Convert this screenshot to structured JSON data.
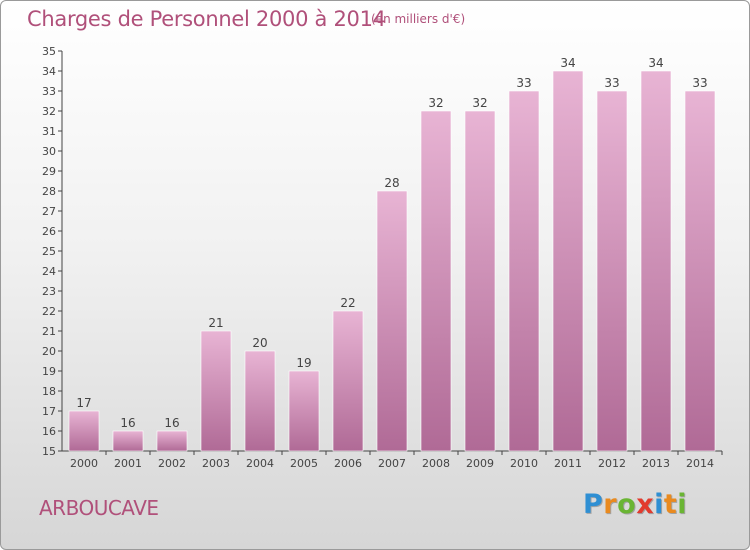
{
  "title": "Charges de Personnel 2000 à 2014",
  "subtitle": "(en milliers d'€)",
  "commune": "ARBOUCAVE",
  "logo": {
    "letters": [
      "P",
      "r",
      "o",
      "x",
      "i",
      "t",
      "i"
    ],
    "colors": [
      "#2f8fd3",
      "#e98a1f",
      "#6ab533",
      "#e23b2e",
      "#2f8fd3",
      "#e98a1f",
      "#6ab533"
    ]
  },
  "colors": {
    "bar_top": "#e8b4d4",
    "bar_bottom": "#b06a96",
    "text": "#b0507a",
    "axis": "#444444"
  },
  "chart_data": {
    "type": "bar",
    "categories": [
      "2000",
      "2001",
      "2002",
      "2003",
      "2004",
      "2005",
      "2006",
      "2007",
      "2008",
      "2009",
      "2010",
      "2011",
      "2012",
      "2013",
      "2014"
    ],
    "values": [
      17,
      16,
      16,
      21,
      20,
      19,
      22,
      28,
      32,
      32,
      33,
      34,
      33,
      34,
      33
    ],
    "ylim": [
      15,
      35
    ],
    "yticks": [
      15,
      16,
      17,
      18,
      19,
      20,
      21,
      22,
      23,
      24,
      25,
      26,
      27,
      28,
      29,
      30,
      31,
      32,
      33,
      34,
      35
    ],
    "grid": false,
    "data_labels": true
  }
}
